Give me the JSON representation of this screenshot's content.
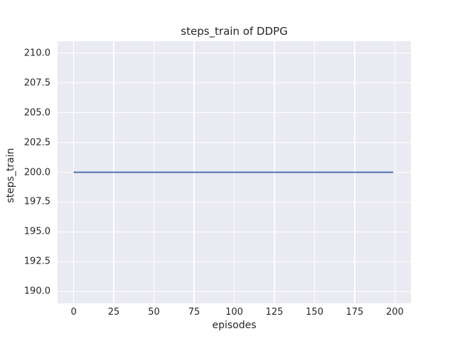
{
  "chart_data": {
    "type": "line",
    "title": "steps_train of DDPG",
    "xlabel": "episodes",
    "ylabel": "steps_train",
    "x_ticks": [
      0,
      25,
      50,
      75,
      100,
      125,
      150,
      175,
      200
    ],
    "x_tick_labels": [
      "0",
      "25",
      "50",
      "75",
      "100",
      "125",
      "150",
      "175",
      "200"
    ],
    "y_ticks": [
      190.0,
      192.5,
      195.0,
      197.5,
      200.0,
      202.5,
      205.0,
      207.5,
      210.0
    ],
    "y_tick_labels": [
      "190.0",
      "192.5",
      "195.0",
      "197.5",
      "200.0",
      "202.5",
      "205.0",
      "207.5",
      "210.0"
    ],
    "xlim": [
      -10,
      210
    ],
    "ylim": [
      189,
      211
    ],
    "grid": true,
    "legend": null,
    "style": "seaborn-darkgrid",
    "colors": {
      "figure_background": "#ffffff",
      "axes_background": "#eaeaf2",
      "grid": "#ffffff",
      "line": "#4c72b0",
      "text": "#262626"
    },
    "series": [
      {
        "name": "steps_train",
        "description": "constant value 200 steps per episode across episodes 0 to 199",
        "x": [
          0,
          199
        ],
        "y": [
          200,
          200
        ],
        "color": "#4c72b0",
        "line_width": 2
      }
    ]
  }
}
